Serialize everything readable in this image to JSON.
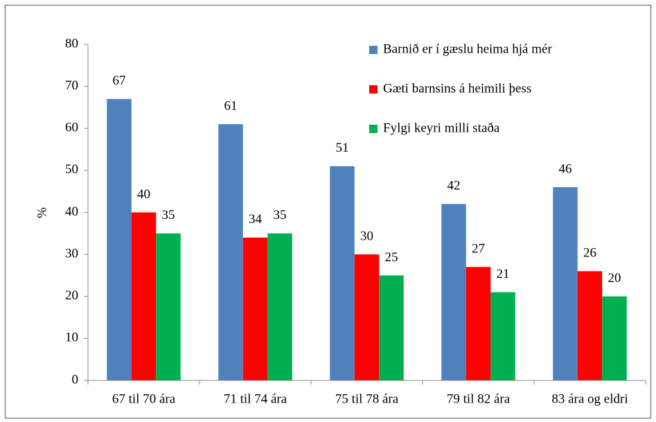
{
  "chart_data": {
    "type": "bar",
    "ylabel": "%",
    "categories": [
      "67 til 70 ára",
      "71 til 74 ára",
      "75 til 78 ára",
      "79 til 82 ára",
      "83 ára og eldri"
    ],
    "series": [
      {
        "name": "Barnið er í gæslu heima hjá mér",
        "color": "#4f81bd",
        "values": [
          67,
          61,
          51,
          42,
          46
        ]
      },
      {
        "name": "Gæti barnsins á heimili þess",
        "color": "#ff0000",
        "values": [
          40,
          34,
          30,
          27,
          26
        ]
      },
      {
        "name": "Fylgi keyri milli staða",
        "color": "#00b050",
        "values": [
          35,
          35,
          25,
          21,
          20
        ]
      }
    ],
    "ylim": [
      0,
      80
    ],
    "yticks": [
      0,
      10,
      20,
      30,
      40,
      50,
      60,
      70,
      80
    ],
    "grid": false,
    "legend": "top-right"
  }
}
